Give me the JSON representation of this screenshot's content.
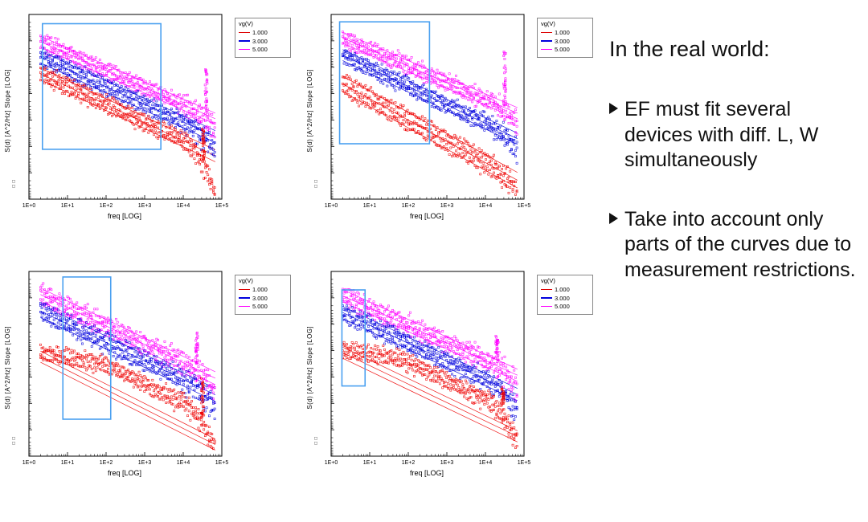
{
  "slide": {
    "title": "In the real world:",
    "bullets": [
      "EF must fit several devices with diff. L, W simultaneously",
      "Take into account only parts of the curves due to measurement restrictions."
    ]
  },
  "axes": {
    "xlabel": "freq [LOG]",
    "ylabel": "S(d) [A^2/Hz]  Slope  [LOG]",
    "ylabel_sub": "□□",
    "xticks": [
      "1E+0",
      "1E+1",
      "1E+2",
      "1E+3",
      "1E+4",
      "1E+5"
    ]
  },
  "legend": {
    "title": "vg(V)",
    "entries": [
      {
        "label": "1.000",
        "color": "#dd0000"
      },
      {
        "label": "3.000",
        "color": "#0000dd"
      },
      {
        "label": "5.000",
        "color": "#ff00ff"
      }
    ]
  },
  "colors": {
    "highlight": "#4aa0f0",
    "axis": "#000000"
  },
  "chart_data": [
    {
      "id": "top-left",
      "type": "scatter",
      "x_log_range": [
        0.3,
        4.83
      ],
      "x_axis": "freq, log scale 1E+0 to 1E+5",
      "y_axis": "S(d) [A^2/Hz], log scale, unlabeled ticks",
      "series": [
        {
          "name": "vg=5.000",
          "color": "#ff00ff",
          "y0": 0.09,
          "slope": 0.092,
          "devices": 3,
          "dev_off": 0.03,
          "noise": 0.022,
          "droop": 0.1,
          "spike": {
            "x": 4.6,
            "h": 0.25
          }
        },
        {
          "name": "vg=3.000",
          "color": "#0000dd",
          "y0": 0.17,
          "slope": 0.095,
          "devices": 3,
          "dev_off": 0.032,
          "noise": 0.022,
          "droop": 0.12,
          "spike": null
        },
        {
          "name": "vg=1.000",
          "color": "#ee0000",
          "y0": 0.26,
          "slope": 0.098,
          "devices": 3,
          "dev_off": 0.032,
          "noise": 0.022,
          "droop": 0.3,
          "spike": {
            "x": 4.52,
            "h": 0.16
          }
        }
      ],
      "highlight_rect": {
        "x1": 0.35,
        "x2": 3.42,
        "y1": 0.05,
        "y2": 0.73
      }
    },
    {
      "id": "top-right",
      "type": "scatter",
      "x_log_range": [
        0.3,
        4.83
      ],
      "x_axis": "freq, log scale 1E+0 to 1E+5",
      "y_axis": "S(d) [A^2/Hz], log scale, unlabeled ticks",
      "series": [
        {
          "name": "vg=5.000",
          "color": "#ff00ff",
          "y0": 0.07,
          "slope": 0.09,
          "devices": 3,
          "dev_off": 0.03,
          "noise": 0.024,
          "droop": 0.08,
          "spike": {
            "x": 4.5,
            "h": 0.3
          }
        },
        {
          "name": "vg=3.000",
          "color": "#0000dd",
          "y0": 0.16,
          "slope": 0.1,
          "devices": 3,
          "dev_off": 0.03,
          "noise": 0.024,
          "droop": 0.08,
          "spike": null
        },
        {
          "name": "vg=1.000",
          "color": "#ee0000",
          "y0": 0.3,
          "slope": 0.115,
          "devices": 3,
          "dev_off": 0.042,
          "noise": 0.022,
          "droop": 0.1,
          "spike": null
        }
      ],
      "highlight_rect": {
        "x1": 0.22,
        "x2": 2.55,
        "y1": 0.04,
        "y2": 0.7
      }
    },
    {
      "id": "bottom-left",
      "type": "scatter",
      "x_log_range": [
        0.3,
        4.83
      ],
      "x_axis": "freq, log scale 1E+0 to 1E+5",
      "y_axis": "S(d) [A^2/Hz], log scale, unlabeled ticks",
      "series": [
        {
          "name": "vg=5.000",
          "color": "#ff00ff",
          "y0": 0.06,
          "slope": 0.1,
          "devices": 3,
          "dev_off": 0.035,
          "noise": 0.032,
          "droop": 0.1,
          "spike": {
            "x": 4.35,
            "h": 0.18
          }
        },
        {
          "name": "vg=3.000",
          "color": "#0000dd",
          "y0": 0.15,
          "slope": 0.1,
          "devices": 3,
          "dev_off": 0.035,
          "noise": 0.03,
          "droop": 0.12,
          "spike": null
        },
        {
          "name": "vg=1.000",
          "color": "#ee0000",
          "y0": 0.4,
          "slope": 0.105,
          "devices": 3,
          "dev_off": 0.03,
          "noise": 0.022,
          "droop": 0.25,
          "knee": 2.0,
          "spike": {
            "x": 4.5,
            "h": 0.22
          }
        }
      ],
      "highlight_rect": {
        "x1": 0.88,
        "x2": 2.12,
        "y1": 0.03,
        "y2": 0.8
      }
    },
    {
      "id": "bottom-right",
      "type": "scatter",
      "x_log_range": [
        0.3,
        4.83
      ],
      "x_axis": "freq, log scale 1E+0 to 1E+5",
      "y_axis": "S(d) [A^2/Hz], log scale, unlabeled ticks",
      "series": [
        {
          "name": "vg=5.000",
          "color": "#ff00ff",
          "y0": 0.07,
          "slope": 0.095,
          "devices": 3,
          "dev_off": 0.033,
          "noise": 0.03,
          "droop": 0.1,
          "spike": {
            "x": 4.3,
            "h": 0.15
          }
        },
        {
          "name": "vg=3.000",
          "color": "#0000dd",
          "y0": 0.16,
          "slope": 0.098,
          "devices": 3,
          "dev_off": 0.033,
          "noise": 0.028,
          "droop": 0.12,
          "spike": null
        },
        {
          "name": "vg=1.000",
          "color": "#ee0000",
          "y0": 0.38,
          "slope": 0.1,
          "devices": 3,
          "dev_off": 0.03,
          "noise": 0.022,
          "droop": 0.22,
          "knee": 1.8,
          "spike": {
            "x": 4.45,
            "h": 0.12
          }
        }
      ],
      "highlight_rect": {
        "x1": 0.28,
        "x2": 0.88,
        "y1": 0.1,
        "y2": 0.62
      }
    }
  ]
}
